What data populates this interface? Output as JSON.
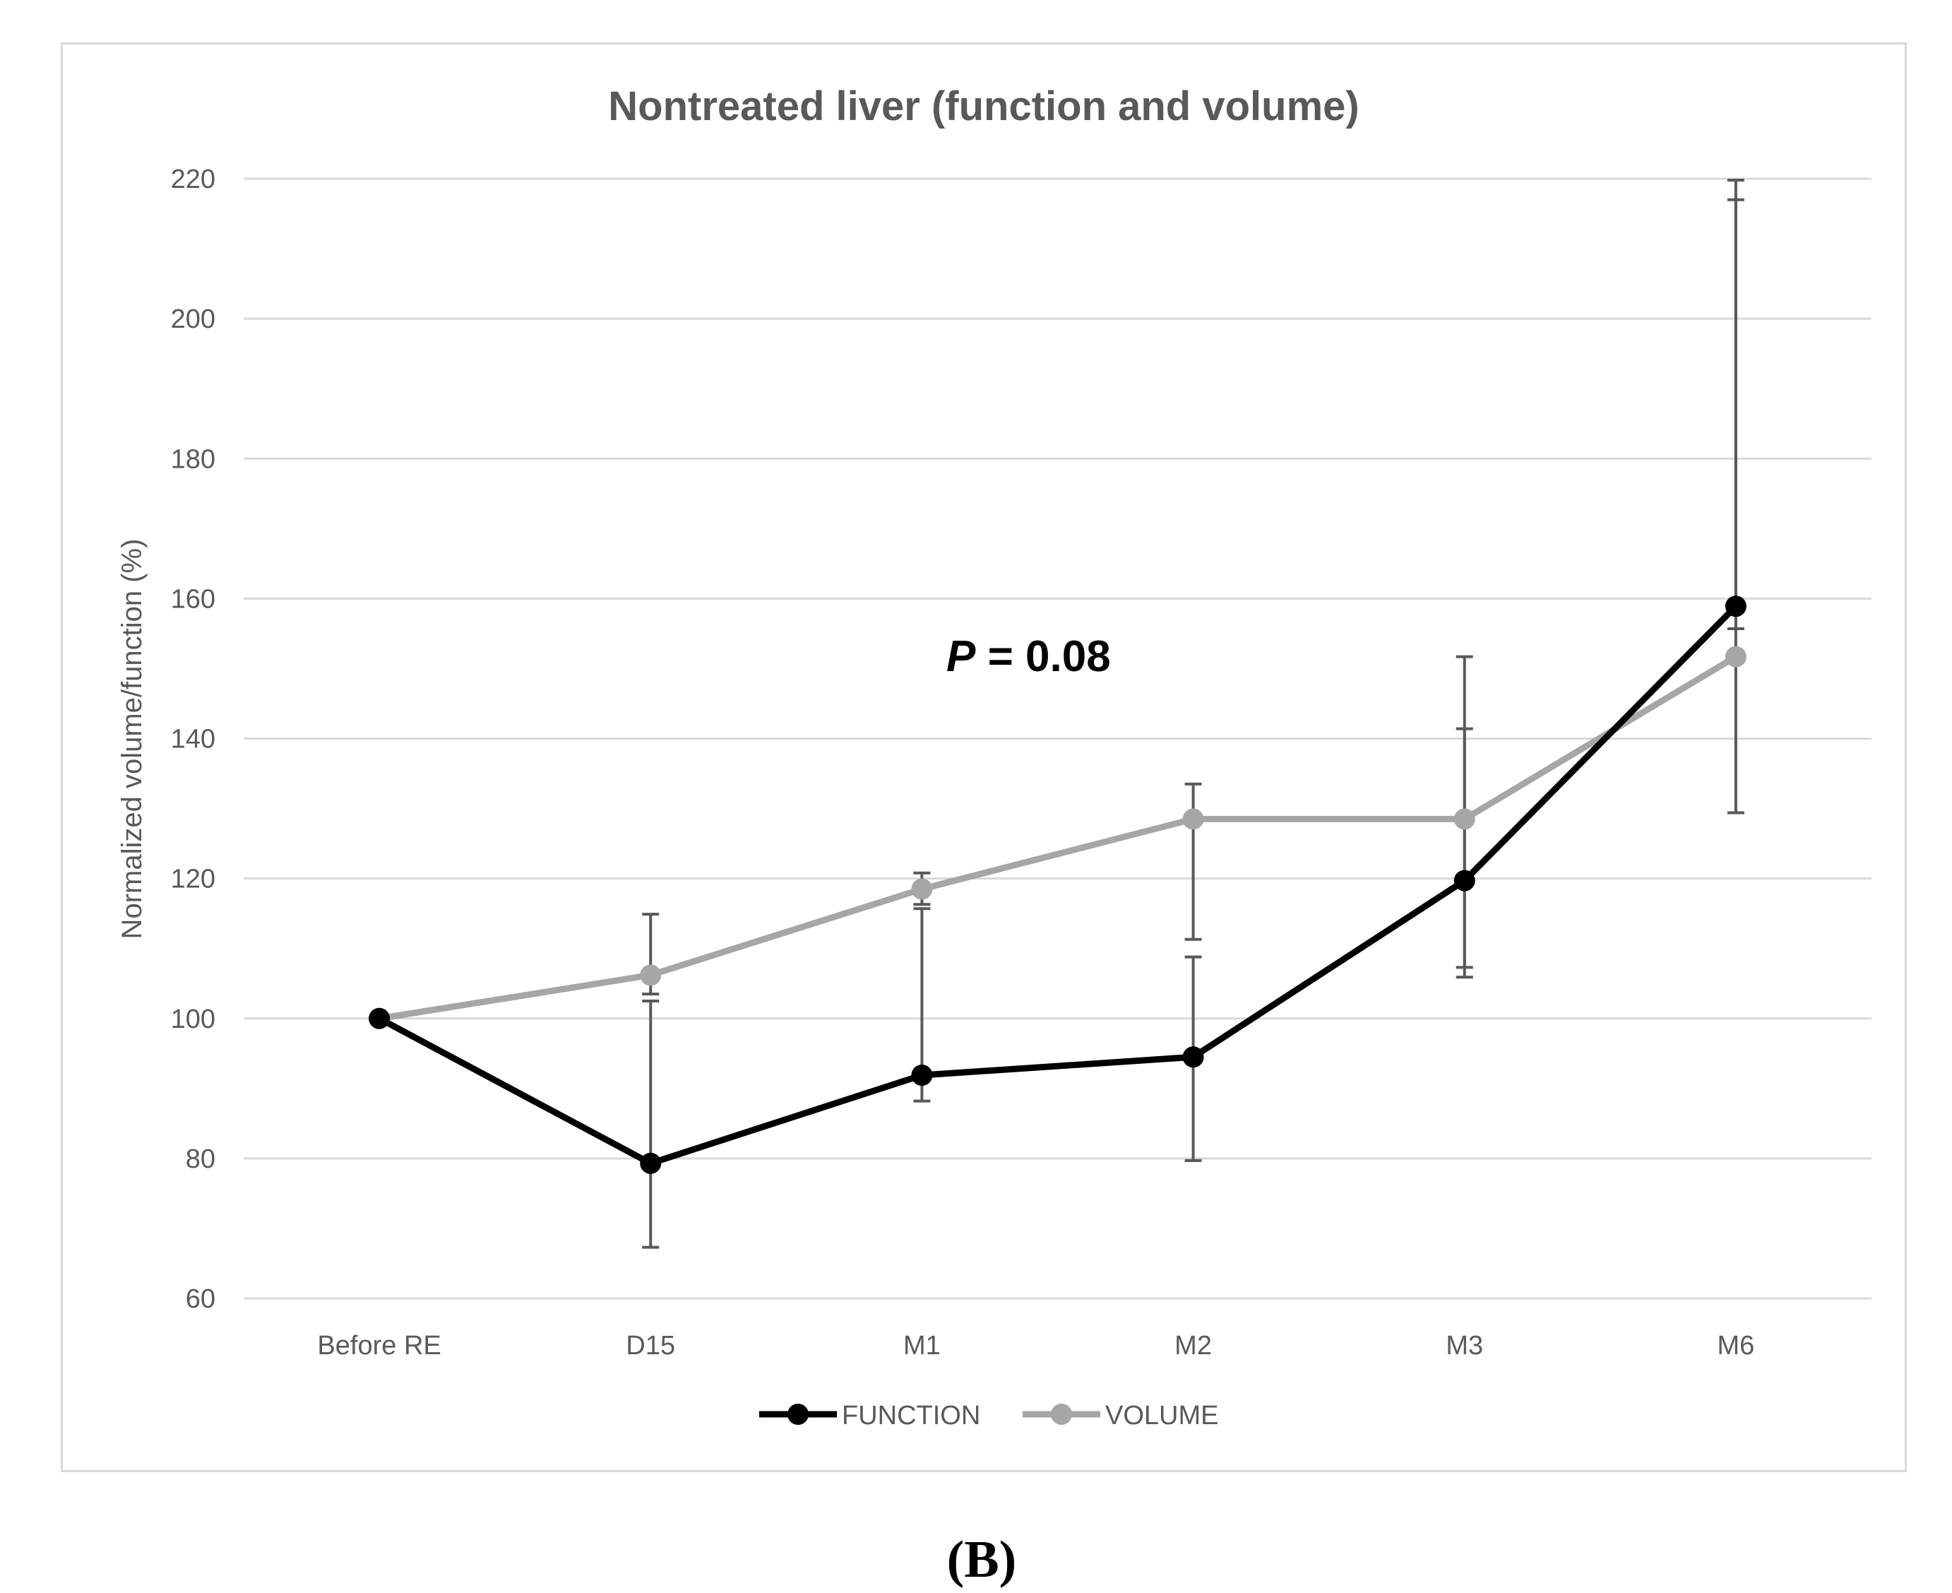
{
  "chart_data": {
    "type": "line",
    "title": "Nontreated liver (function and volume)",
    "xlabel": "",
    "ylabel": "Normalized volume/function (%)",
    "categories": [
      "Before RE",
      "D15",
      "M1",
      "M2",
      "M3",
      "M6"
    ],
    "ylim": [
      60,
      220
    ],
    "yticks": [
      60,
      80,
      100,
      120,
      140,
      160,
      180,
      200,
      220
    ],
    "grid": true,
    "legend": "bottom",
    "series": [
      {
        "name": "FUNCTION",
        "color": "#000000",
        "values": [
          100,
          79.3,
          91.9,
          94.5,
          119.7,
          158.9
        ],
        "err_low": [
          null,
          67.3,
          88.2,
          79.7,
          107.3,
          129.4
        ],
        "err_high": [
          null,
          102.5,
          115.7,
          108.8,
          141.4,
          219.8
        ]
      },
      {
        "name": "VOLUME",
        "color": "#a6a6a6",
        "values": [
          100,
          106.2,
          118.5,
          128.5,
          128.5,
          151.7
        ],
        "err_low": [
          null,
          103.5,
          116.3,
          111.3,
          105.9,
          155.7
        ],
        "err_high": [
          null,
          114.9,
          120.8,
          133.5,
          151.7,
          217.0
        ]
      }
    ],
    "annotation": {
      "prefix": "P",
      "text": " = 0.08"
    }
  },
  "panel_label": "(B)"
}
